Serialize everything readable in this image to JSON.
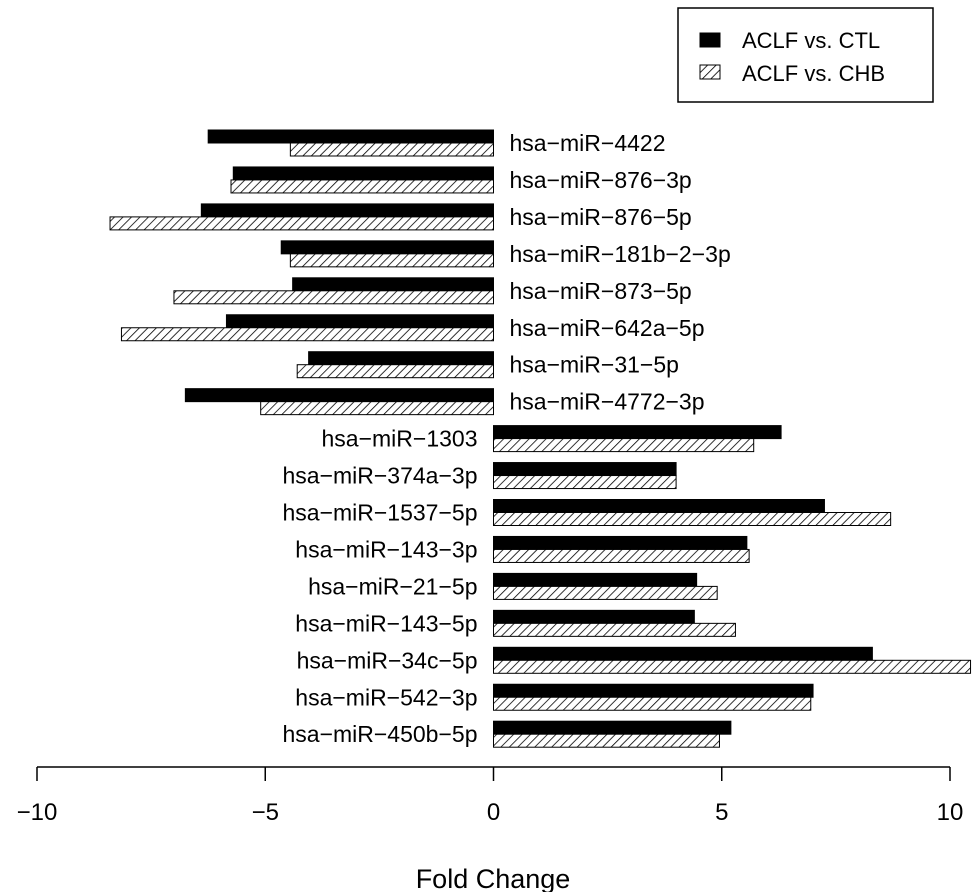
{
  "chart_data": {
    "type": "bar",
    "orientation": "horizontal",
    "categories": [
      "hsa−miR−4422",
      "hsa−miR−876−3p",
      "hsa−miR−876−5p",
      "hsa−miR−181b−2−3p",
      "hsa−miR−873−5p",
      "hsa−miR−642a−5p",
      "hsa−miR−31−5p",
      "hsa−miR−4772−3p",
      "hsa−miR−1303",
      "hsa−miR−374a−3p",
      "hsa−miR−1537−5p",
      "hsa−miR−143−3p",
      "hsa−miR−21−5p",
      "hsa−miR−143−5p",
      "hsa−miR−34c−5p",
      "hsa−miR−542−3p",
      "hsa−miR−450b−5p"
    ],
    "series": [
      {
        "name": "ACLF vs. CTL",
        "fill": "solid",
        "color": "#000000",
        "values": [
          -6.25,
          -5.7,
          -6.4,
          -4.65,
          -4.4,
          -5.85,
          -4.05,
          -6.75,
          6.3,
          4.0,
          7.25,
          5.55,
          4.45,
          4.4,
          8.3,
          7.0,
          5.2
        ]
      },
      {
        "name": "ACLF vs. CHB",
        "fill": "hatched",
        "color": "#000000",
        "values": [
          -4.45,
          -5.75,
          -8.4,
          -4.45,
          -7.0,
          -8.15,
          -4.3,
          -5.1,
          5.7,
          4.0,
          8.7,
          5.6,
          4.9,
          5.3,
          10.45,
          6.95,
          4.95
        ]
      }
    ],
    "xlabel": "Fold Change",
    "ylabel": "",
    "xlim": [
      -10,
      10
    ],
    "xticks": [
      -10,
      -5,
      0,
      5,
      10
    ],
    "xtick_labels": [
      "−10",
      "−5",
      "0",
      "5",
      "10"
    ],
    "legend": {
      "position": "top-right",
      "entries": [
        "ACLF vs. CTL",
        "ACLF vs. CHB"
      ]
    },
    "grid": false
  }
}
